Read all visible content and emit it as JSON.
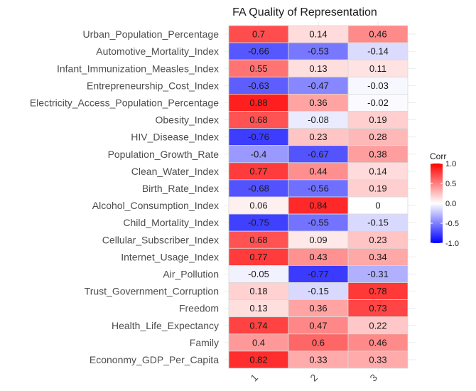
{
  "chart_data": {
    "type": "heatmap",
    "title": "FA Quality of Representation",
    "xlabel": "",
    "ylabel": "",
    "columns": [
      "1",
      "2",
      "3"
    ],
    "rows": [
      "Urban_Population_Percentage",
      "Automotive_Mortality_Index",
      "Infant_Immunization_Measles_Index",
      "Entrepreneurship_Cost_Index",
      "Electricity_Access_Population_Percentage",
      "Obesity_Index",
      "HIV_Disease_Index",
      "Population_Growth_Rate",
      "Clean_Water_Index",
      "Birth_Rate_Index",
      "Alcohol_Consumption_Index",
      "Child_Mortality_Index",
      "Cellular_Subscriber_Index",
      "Internet_Usage_Index",
      "Air_Pollution",
      "Trust_Government_Corruption",
      "Freedom",
      "Health_Life_Expectancy",
      "Family",
      "Econonmy_GDP_Per_Capita"
    ],
    "values": [
      [
        0.7,
        0.14,
        0.46
      ],
      [
        -0.66,
        -0.53,
        -0.14
      ],
      [
        0.55,
        0.13,
        0.11
      ],
      [
        -0.63,
        -0.47,
        -0.03
      ],
      [
        0.88,
        0.36,
        -0.02
      ],
      [
        0.68,
        -0.08,
        0.19
      ],
      [
        -0.76,
        0.23,
        0.28
      ],
      [
        -0.4,
        -0.67,
        0.38
      ],
      [
        0.77,
        0.44,
        0.14
      ],
      [
        -0.68,
        -0.56,
        0.19
      ],
      [
        0.06,
        0.84,
        0
      ],
      [
        -0.75,
        -0.55,
        -0.15
      ],
      [
        0.68,
        0.09,
        0.23
      ],
      [
        0.77,
        0.43,
        0.34
      ],
      [
        -0.05,
        -0.77,
        -0.31
      ],
      [
        0.18,
        -0.15,
        0.78
      ],
      [
        0.13,
        0.36,
        0.73
      ],
      [
        0.74,
        0.47,
        0.22
      ],
      [
        0.4,
        0.6,
        0.46
      ],
      [
        0.82,
        0.33,
        0.33
      ]
    ],
    "legend": {
      "title": "Corr",
      "ticks": [
        "1.0",
        "0.5",
        "0.0",
        "-0.5",
        "-1.0"
      ],
      "tick_values": [
        1,
        0.5,
        0,
        -0.5,
        -1
      ],
      "range": [
        -1,
        1
      ],
      "colors": {
        "low": "#0000ff",
        "mid": "#ffffff",
        "high": "#ff0000"
      },
      "placement": "right"
    },
    "grid": true,
    "x_tick_rotation_deg": -45
  }
}
